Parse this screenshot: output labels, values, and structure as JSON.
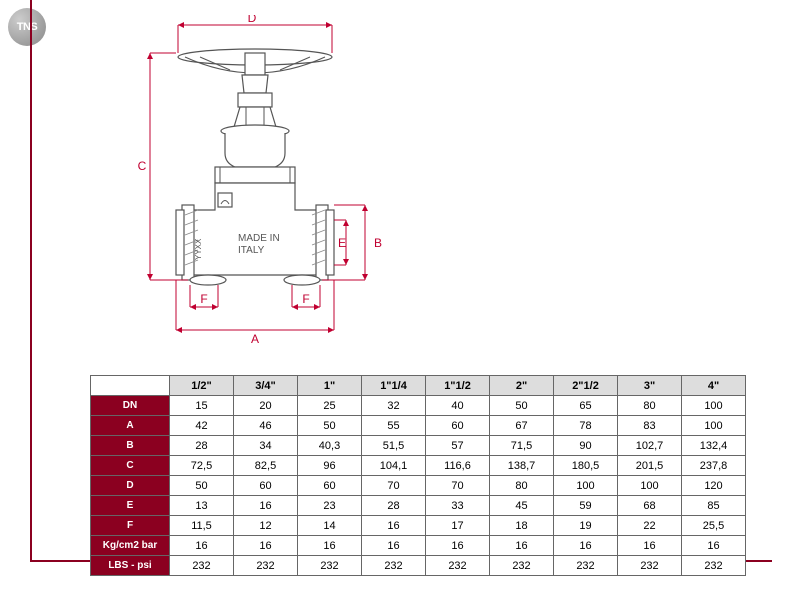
{
  "logo_text": "TNS",
  "diagram": {
    "body_text1": "MADE IN",
    "body_text2": "ITALY",
    "side_text": "YYXX",
    "dims": {
      "A": "A",
      "B": "B",
      "C": "C",
      "D": "D",
      "E": "E",
      "F": "F"
    },
    "dim_color": "#c00030",
    "part_stroke": "#555555"
  },
  "table": {
    "headers": [
      "1/2\"",
      "3/4\"",
      "1\"",
      "1\"1/4",
      "1\"1/2",
      "2\"",
      "2\"1/2",
      "3\"",
      "4\""
    ],
    "rows": [
      {
        "label": "DN",
        "cells": [
          "15",
          "20",
          "25",
          "32",
          "40",
          "50",
          "65",
          "80",
          "100"
        ]
      },
      {
        "label": "A",
        "cells": [
          "42",
          "46",
          "50",
          "55",
          "60",
          "67",
          "78",
          "83",
          "100"
        ]
      },
      {
        "label": "B",
        "cells": [
          "28",
          "34",
          "40,3",
          "51,5",
          "57",
          "71,5",
          "90",
          "102,7",
          "132,4"
        ]
      },
      {
        "label": "C",
        "cells": [
          "72,5",
          "82,5",
          "96",
          "104,1",
          "116,6",
          "138,7",
          "180,5",
          "201,5",
          "237,8"
        ]
      },
      {
        "label": "D",
        "cells": [
          "50",
          "60",
          "60",
          "70",
          "70",
          "80",
          "100",
          "100",
          "120"
        ]
      },
      {
        "label": "E",
        "cells": [
          "13",
          "16",
          "23",
          "28",
          "33",
          "45",
          "59",
          "68",
          "85"
        ]
      },
      {
        "label": "F",
        "cells": [
          "11,5",
          "12",
          "14",
          "16",
          "17",
          "18",
          "19",
          "22",
          "25,5"
        ]
      },
      {
        "label": "Kg/cm2 bar",
        "cells": [
          "16",
          "16",
          "16",
          "16",
          "16",
          "16",
          "16",
          "16",
          "16"
        ]
      },
      {
        "label": "LBS - psi",
        "cells": [
          "232",
          "232",
          "232",
          "232",
          "232",
          "232",
          "232",
          "232",
          "232"
        ]
      }
    ],
    "label_bg": "#8b0020",
    "label_fg": "#ffffff",
    "header_bg": "#dddddd",
    "border": "#666666"
  }
}
